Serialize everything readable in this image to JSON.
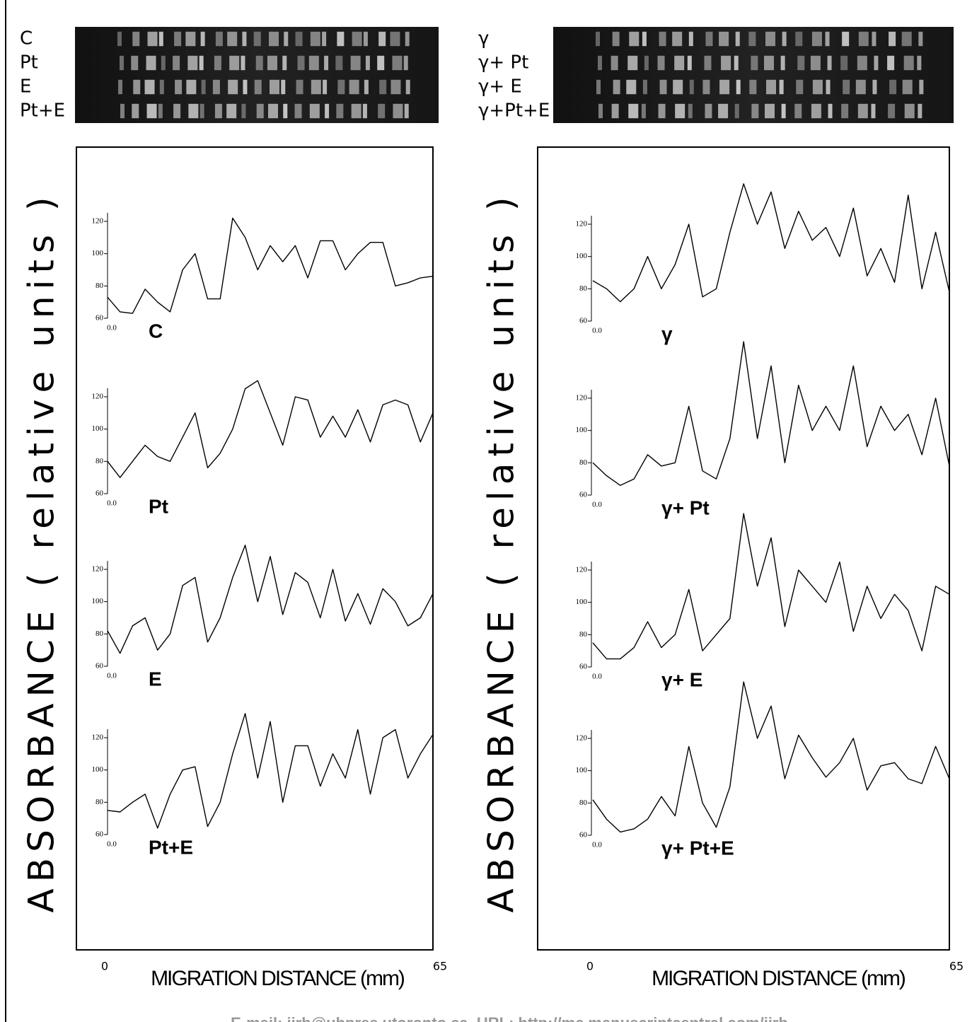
{
  "chart_data": [
    {
      "type": "line",
      "gel_labels": [
        "C",
        "Pt",
        "E",
        "Pt+E"
      ],
      "ylabel": "ABSORBANCE ( relative units )",
      "xlabel": "MIGRATION DISTANCE (mm)",
      "xlim": [
        0,
        65
      ],
      "xticks": [
        0,
        65
      ],
      "ylim": [
        60,
        120
      ],
      "yticks": [
        60,
        80,
        100,
        120
      ],
      "trace_xtick": {
        "value": 0,
        "label": "0.0"
      },
      "x": [
        0,
        2.5,
        5,
        7.5,
        10,
        12.5,
        15,
        17.5,
        20,
        22.5,
        25,
        27.5,
        30,
        32.5,
        35,
        37.5,
        40,
        42.5,
        45,
        47.5,
        50,
        52.5,
        55,
        57.5,
        60,
        62.5,
        65
      ],
      "series": [
        {
          "name": "C",
          "color": "#000000",
          "values": [
            73,
            64,
            63,
            78,
            70,
            64,
            90,
            100,
            72,
            72,
            122,
            110,
            90,
            105,
            95,
            105,
            85,
            108,
            108,
            90,
            100,
            107,
            107,
            80,
            82,
            85,
            86
          ]
        },
        {
          "name": "Pt",
          "color": "#000000",
          "values": [
            80,
            70,
            80,
            90,
            83,
            80,
            95,
            110,
            76,
            85,
            100,
            125,
            130,
            110,
            90,
            120,
            118,
            95,
            108,
            95,
            112,
            92,
            115,
            118,
            115,
            92,
            110
          ]
        },
        {
          "name": "E",
          "color": "#000000",
          "values": [
            82,
            68,
            85,
            90,
            70,
            80,
            110,
            115,
            75,
            90,
            115,
            135,
            100,
            128,
            92,
            118,
            112,
            90,
            120,
            88,
            105,
            86,
            108,
            100,
            85,
            90,
            105
          ]
        },
        {
          "name": "Pt+E",
          "color": "#000000",
          "values": [
            75,
            74,
            80,
            85,
            64,
            85,
            100,
            102,
            65,
            80,
            110,
            135,
            95,
            130,
            80,
            115,
            115,
            90,
            110,
            95,
            125,
            85,
            120,
            125,
            95,
            110,
            122
          ]
        }
      ]
    },
    {
      "type": "line",
      "gel_labels": [
        "γ",
        "γ+ Pt",
        "γ+ E",
        "γ+Pt+E"
      ],
      "ylabel": "ABSORBANCE ( relative units )",
      "xlabel": "MIGRATION DISTANCE (mm)",
      "xlim": [
        0,
        65
      ],
      "xticks": [
        0,
        65
      ],
      "ylim": [
        60,
        120
      ],
      "yticks": [
        60,
        80,
        100,
        120
      ],
      "trace_xtick": {
        "value": 0,
        "label": "0.0"
      },
      "x": [
        0,
        2.5,
        5,
        7.5,
        10,
        12.5,
        15,
        17.5,
        20,
        22.5,
        25,
        27.5,
        30,
        32.5,
        35,
        37.5,
        40,
        42.5,
        45,
        47.5,
        50,
        52.5,
        55,
        57.5,
        60,
        62.5,
        65
      ],
      "series": [
        {
          "name": "γ",
          "color": "#000000",
          "values": [
            85,
            80,
            72,
            80,
            100,
            80,
            95,
            120,
            75,
            80,
            115,
            145,
            120,
            140,
            105,
            128,
            110,
            118,
            100,
            130,
            88,
            105,
            84,
            138,
            80,
            115,
            78
          ]
        },
        {
          "name": "γ+ Pt",
          "color": "#000000",
          "values": [
            80,
            72,
            66,
            70,
            85,
            78,
            80,
            115,
            75,
            70,
            95,
            155,
            95,
            140,
            80,
            128,
            100,
            115,
            100,
            140,
            90,
            115,
            100,
            110,
            85,
            120,
            78
          ]
        },
        {
          "name": "γ+ E",
          "color": "#000000",
          "values": [
            75,
            65,
            65,
            72,
            88,
            72,
            80,
            108,
            70,
            80,
            90,
            155,
            110,
            140,
            85,
            120,
            110,
            100,
            125,
            82,
            110,
            90,
            105,
            95,
            70,
            110,
            105
          ]
        },
        {
          "name": "γ+ Pt+E",
          "color": "#000000",
          "values": [
            82,
            70,
            62,
            64,
            70,
            84,
            72,
            115,
            80,
            65,
            90,
            155,
            120,
            140,
            95,
            122,
            108,
            96,
            105,
            120,
            88,
            103,
            105,
            95,
            92,
            115,
            95
          ]
        }
      ]
    }
  ],
  "footer": "E-mail: ijrb@uhpres.utoronto.ca, URL: http://mc.manuscriptcentral.com/ijrb"
}
